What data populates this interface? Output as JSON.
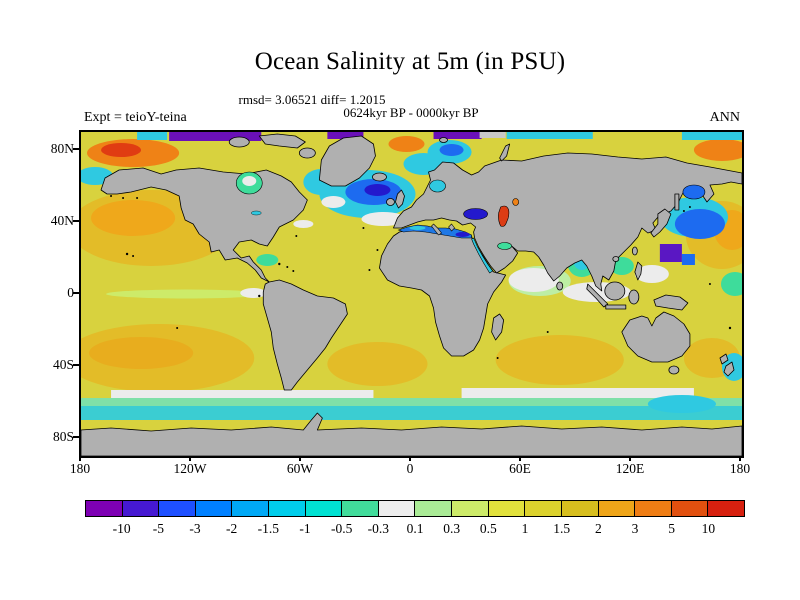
{
  "title": "Ocean Salinity at 5m (in PSU)",
  "stats_line": "rmsd= 3.06521 diff= 1.2015",
  "period_line": "0624kyr BP - 0000kyr BP",
  "expt_label": "Expt = teioY-teina",
  "season_label": "ANN",
  "chart_data": {
    "type": "heatmap",
    "title": "Ocean Salinity at 5m (in PSU)",
    "subtitle": "0624kyr BP - 0000kyr BP",
    "stats": {
      "rmsd": 3.06521,
      "diff": 1.2015
    },
    "experiment": "teioY-teina",
    "season": "ANN",
    "units": "PSU",
    "projection": "equirectangular world map",
    "lon_range": [
      -180,
      180
    ],
    "lat_range": [
      -90,
      90
    ],
    "grid": false,
    "legend_position": "bottom colorbar",
    "land_color": "#b0b0b0",
    "ocean_background_color": "#d8d23e",
    "x_ticks": [
      {
        "label": "180",
        "lon": -180
      },
      {
        "label": "120W",
        "lon": -120
      },
      {
        "label": "60W",
        "lon": -60
      },
      {
        "label": "0",
        "lon": 0
      },
      {
        "label": "60E",
        "lon": 60
      },
      {
        "label": "120E",
        "lon": 120
      },
      {
        "label": "180",
        "lon": 180
      }
    ],
    "y_ticks": [
      {
        "label": "80N",
        "lat": 80
      },
      {
        "label": "40N",
        "lat": 40
      },
      {
        "label": "0",
        "lat": 0
      },
      {
        "label": "40S",
        "lat": -40
      },
      {
        "label": "80S",
        "lat": -80
      }
    ],
    "colorbar": {
      "levels": [
        -10,
        -5,
        -3,
        -2,
        -1.5,
        -1,
        -0.5,
        -0.3,
        0.1,
        0.3,
        0.5,
        1,
        1.5,
        2,
        3,
        5,
        10
      ],
      "colors": [
        "#7e00b4",
        "#4619d2",
        "#1e50ff",
        "#0080ff",
        "#00a8f5",
        "#00cdeb",
        "#00e1d2",
        "#41dc9b",
        "#ededed",
        "#aaeb96",
        "#cdeb69",
        "#e1e13c",
        "#dcd22d",
        "#d7be1e",
        "#efa519",
        "#ef7d14",
        "#e1500f",
        "#d7200f"
      ],
      "units": "PSU"
    },
    "field_summary": {
      "description": "Filled-contour map of 5m salinity difference (0624kyr BP minus 0000kyr BP); continents gray with black coastlines; most open ocean in the +0.5 to +1.5 PSU range.",
      "background_value_psu": 1.0,
      "notable_regions": [
        {
          "region": "Gulf of Alaska / Bering Sea",
          "approx_diff_psu": 5
        },
        {
          "region": "Arctic shelf north of Canada",
          "approx_diff_psu": -10
        },
        {
          "region": "Subpolar North Atlantic / south of Greenland",
          "approx_diff_psu": -2
        },
        {
          "region": "Barents / Norwegian Sea",
          "approx_diff_psu": -2
        },
        {
          "region": "Subtropical gyres (both hemispheres)",
          "approx_diff_psu": 2
        },
        {
          "region": "Mediterranean Sea",
          "approx_diff_psu": -3
        },
        {
          "region": "Black Sea",
          "approx_diff_psu": -5
        },
        {
          "region": "Caspian Sea",
          "approx_diff_psu": 10
        },
        {
          "region": "Kuroshio region / NW Pacific",
          "approx_diff_psu": -3
        },
        {
          "region": "Bay of Bengal",
          "approx_diff_psu": -1
        },
        {
          "region": "Arabian Sea and seas around India/Indonesia",
          "approx_diff_psu": 0
        },
        {
          "region": "Southern Ocean circumpolar band",
          "approx_diff_psu": -1
        }
      ]
    }
  }
}
